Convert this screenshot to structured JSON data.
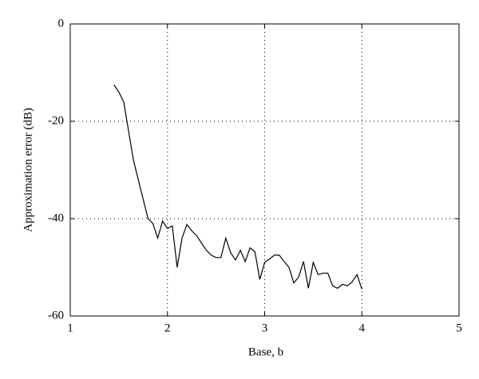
{
  "chart_data": {
    "type": "line",
    "x_label": "Base, b",
    "y_label": "Approximation error (dB)",
    "x": [
      1.45,
      1.5,
      1.55,
      1.6,
      1.65,
      1.7,
      1.75,
      1.8,
      1.85,
      1.9,
      1.95,
      2.0,
      2.05,
      2.1,
      2.15,
      2.2,
      2.25,
      2.3,
      2.35,
      2.4,
      2.45,
      2.5,
      2.55,
      2.6,
      2.65,
      2.7,
      2.75,
      2.8,
      2.85,
      2.9,
      2.95,
      3.0,
      3.05,
      3.1,
      3.15,
      3.2,
      3.25,
      3.3,
      3.35,
      3.4,
      3.45,
      3.5,
      3.55,
      3.6,
      3.65,
      3.7,
      3.75,
      3.8,
      3.85,
      3.9,
      3.95,
      4.0
    ],
    "series": [
      {
        "color": "#000000",
        "values": [
          -12.5,
          -14,
          -16,
          -22,
          -28,
          -32,
          -36,
          -40,
          -41,
          -44,
          -40.5,
          -42,
          -41.5,
          -50,
          -44,
          -41.2,
          -42.5,
          -43.5,
          -45,
          -46.5,
          -47.5,
          -48,
          -48,
          -44,
          -47,
          -48.5,
          -46.5,
          -48.8,
          -46,
          -46.8,
          -52.5,
          -49,
          -48.3,
          -47.5,
          -47.5,
          -48.8,
          -50,
          -53.2,
          -52,
          -48.8,
          -54.3,
          -49,
          -51.5,
          -51.2,
          -51.2,
          -53.8,
          -54.3,
          -53.5,
          -53.8,
          -53,
          -51.5,
          -54.5
        ]
      }
    ],
    "xlim": [
      1,
      5
    ],
    "ylim": [
      -60,
      0
    ],
    "xticks": [
      1,
      2,
      3,
      4,
      5
    ],
    "yticks": [
      -60,
      -40,
      -20,
      0
    ],
    "grid": true
  }
}
